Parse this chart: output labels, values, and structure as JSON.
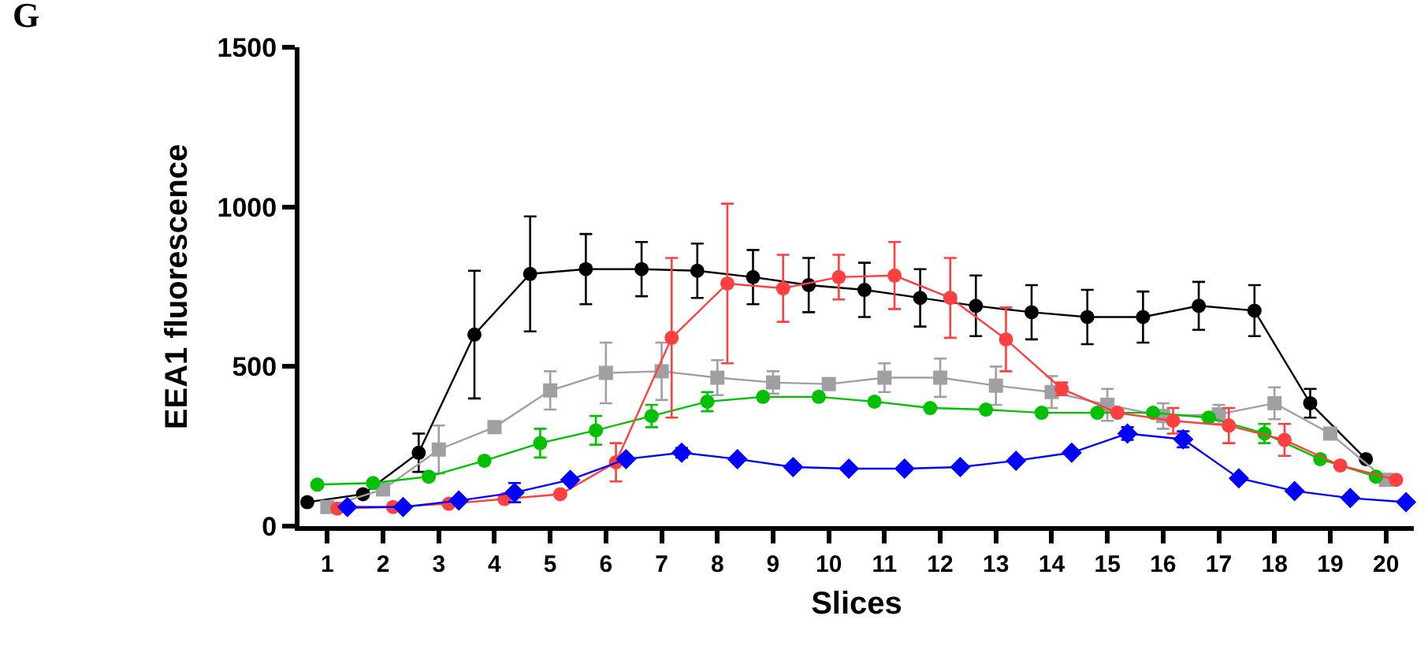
{
  "chart_data": {
    "type": "line",
    "ylabel": "EEA1 fluorescence",
    "xlabel": "Slices",
    "annotations": [
      "G"
    ],
    "xlim": [
      0.5,
      20.5
    ],
    "xticks": [
      1,
      2,
      3,
      4,
      5,
      6,
      7,
      8,
      9,
      10,
      11,
      12,
      13,
      14,
      15,
      16,
      17,
      18,
      19,
      20
    ],
    "ylim": [
      0,
      1500
    ],
    "yticks": [
      0,
      500,
      1000,
      1500
    ],
    "grid": false,
    "line_style": "solid",
    "series": [
      {
        "color": "#000000",
        "marker": "circle",
        "x": [
          0.64,
          1.64,
          2.64,
          3.64,
          4.64,
          5.64,
          6.64,
          7.64,
          8.64,
          9.64,
          10.64,
          11.64,
          12.64,
          13.64,
          14.64,
          15.64,
          16.64,
          17.64,
          18.64,
          19.64
        ],
        "values": [
          75,
          100,
          230,
          600,
          790,
          805,
          805,
          800,
          780,
          755,
          740,
          715,
          690,
          670,
          655,
          655,
          690,
          675,
          385,
          210
        ],
        "errors": [
          null,
          null,
          60,
          200,
          180,
          110,
          85,
          85,
          85,
          85,
          85,
          90,
          95,
          85,
          85,
          80,
          75,
          80,
          45,
          null
        ]
      },
      {
        "color": "#a0a0a4",
        "marker": "square",
        "x": [
          1,
          2,
          3,
          4,
          5,
          6,
          7,
          8,
          9,
          10,
          11,
          12,
          13,
          14,
          15,
          16,
          17,
          18,
          19,
          20
        ],
        "values": [
          60,
          115,
          240,
          310,
          425,
          480,
          485,
          465,
          450,
          445,
          465,
          465,
          440,
          420,
          380,
          345,
          350,
          385,
          290,
          145
        ],
        "errors": [
          null,
          null,
          75,
          null,
          60,
          95,
          90,
          55,
          35,
          null,
          45,
          60,
          60,
          50,
          50,
          40,
          30,
          50,
          null,
          null
        ]
      },
      {
        "color": "#00c000",
        "marker": "circle",
        "x": [
          0.82,
          1.82,
          2.82,
          3.82,
          4.82,
          5.82,
          6.82,
          7.82,
          8.82,
          9.82,
          10.82,
          11.82,
          12.82,
          13.82,
          14.82,
          15.82,
          16.82,
          17.82,
          18.82,
          19.82
        ],
        "values": [
          130,
          135,
          155,
          205,
          260,
          300,
          345,
          390,
          405,
          405,
          390,
          370,
          365,
          355,
          355,
          355,
          340,
          290,
          210,
          155
        ],
        "errors": [
          null,
          null,
          null,
          null,
          45,
          45,
          35,
          30,
          null,
          null,
          null,
          null,
          null,
          null,
          null,
          null,
          null,
          30,
          null,
          null
        ]
      },
      {
        "color": "#ff4040",
        "marker": "circle",
        "x": [
          1.18,
          2.18,
          3.18,
          4.18,
          5.18,
          6.18,
          7.18,
          8.18,
          9.18,
          10.18,
          11.18,
          12.18,
          13.18,
          14.18,
          15.18,
          16.18,
          17.18,
          18.18,
          19.18,
          20.18
        ],
        "values": [
          55,
          60,
          70,
          85,
          100,
          200,
          590,
          760,
          745,
          780,
          785,
          715,
          585,
          430,
          355,
          330,
          315,
          270,
          190,
          145
        ],
        "errors": [
          null,
          null,
          null,
          null,
          null,
          60,
          250,
          250,
          105,
          70,
          105,
          125,
          100,
          20,
          null,
          40,
          55,
          50,
          null,
          null
        ]
      },
      {
        "color": "#0000ff",
        "marker": "diamond",
        "x": [
          1.36,
          2.36,
          3.36,
          4.36,
          5.36,
          6.36,
          7.36,
          8.36,
          9.36,
          10.36,
          11.36,
          12.36,
          13.36,
          14.36,
          15.36,
          16.36,
          17.36,
          18.36,
          19.36,
          20.36
        ],
        "values": [
          60,
          60,
          80,
          105,
          145,
          210,
          230,
          210,
          185,
          180,
          180,
          185,
          205,
          230,
          290,
          272,
          150,
          110,
          88,
          75
        ],
        "errors": [
          null,
          null,
          null,
          30,
          null,
          null,
          15,
          null,
          null,
          null,
          null,
          null,
          null,
          null,
          20,
          25,
          null,
          null,
          null,
          null
        ]
      }
    ]
  }
}
